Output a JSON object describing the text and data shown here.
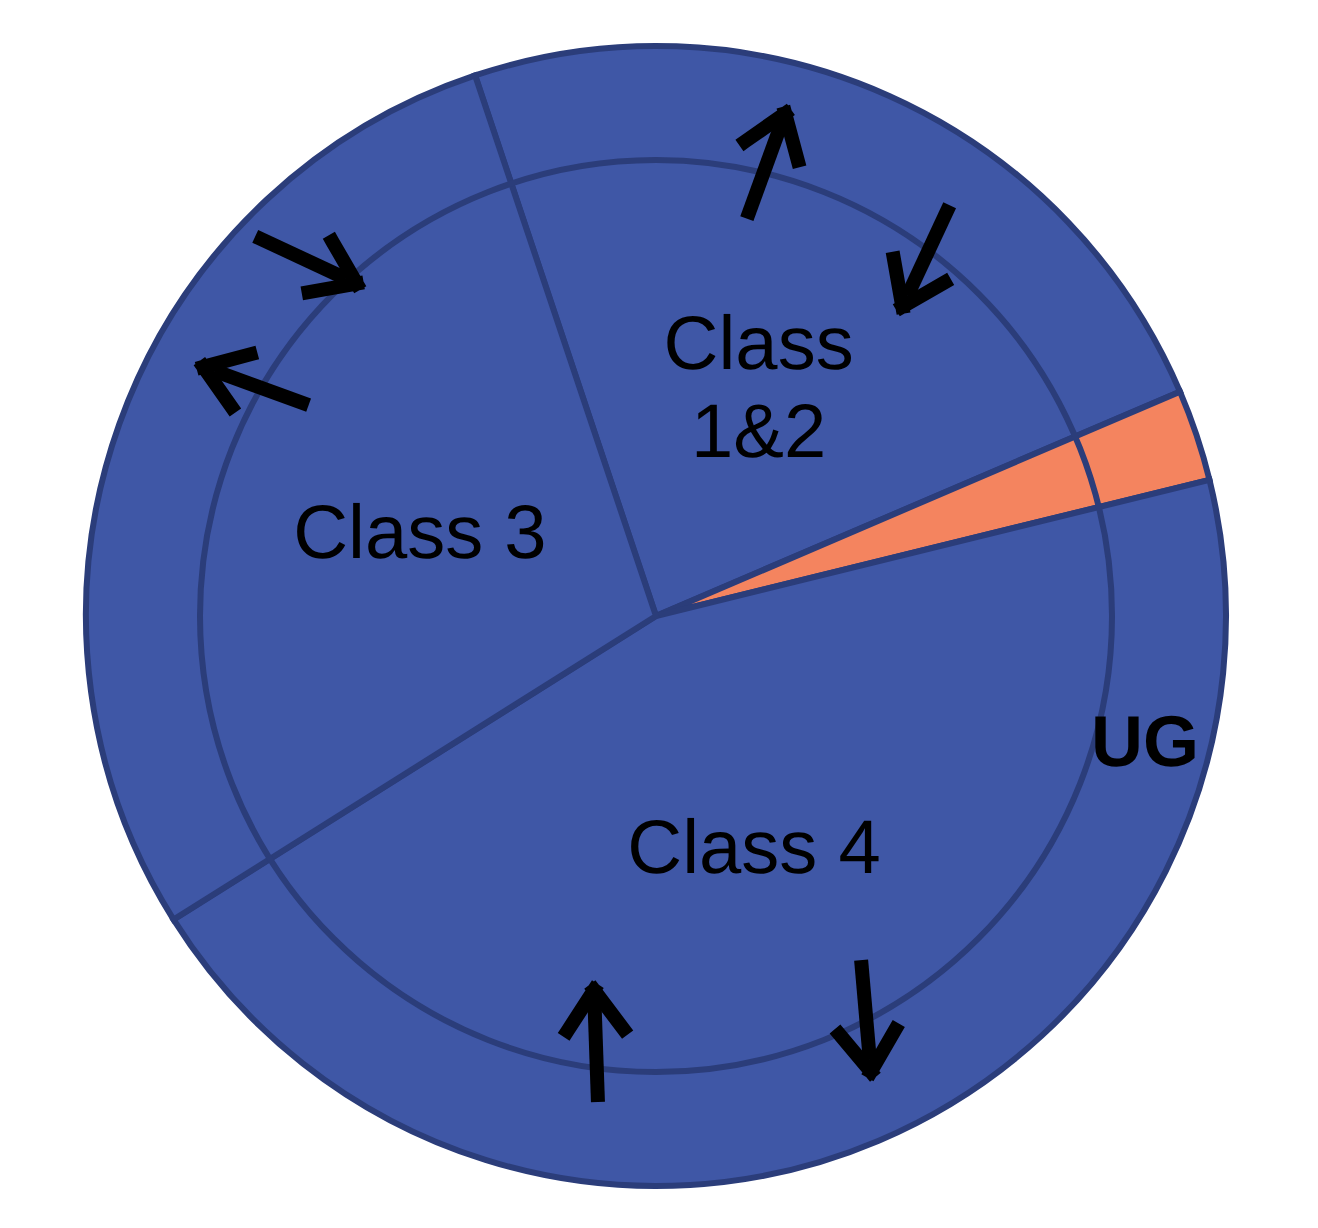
{
  "chart_data": {
    "type": "pie",
    "categories": [
      "Class 1&2",
      null,
      "Class 4",
      "Class 3"
    ],
    "values": [
      23.7,
      2.6,
      44.9,
      28.8
    ],
    "colors": [
      "#3f57a6",
      "#f4845f",
      "#3f57a6",
      "#3f57a6"
    ],
    "annotations": [
      "UG"
    ]
  }
}
